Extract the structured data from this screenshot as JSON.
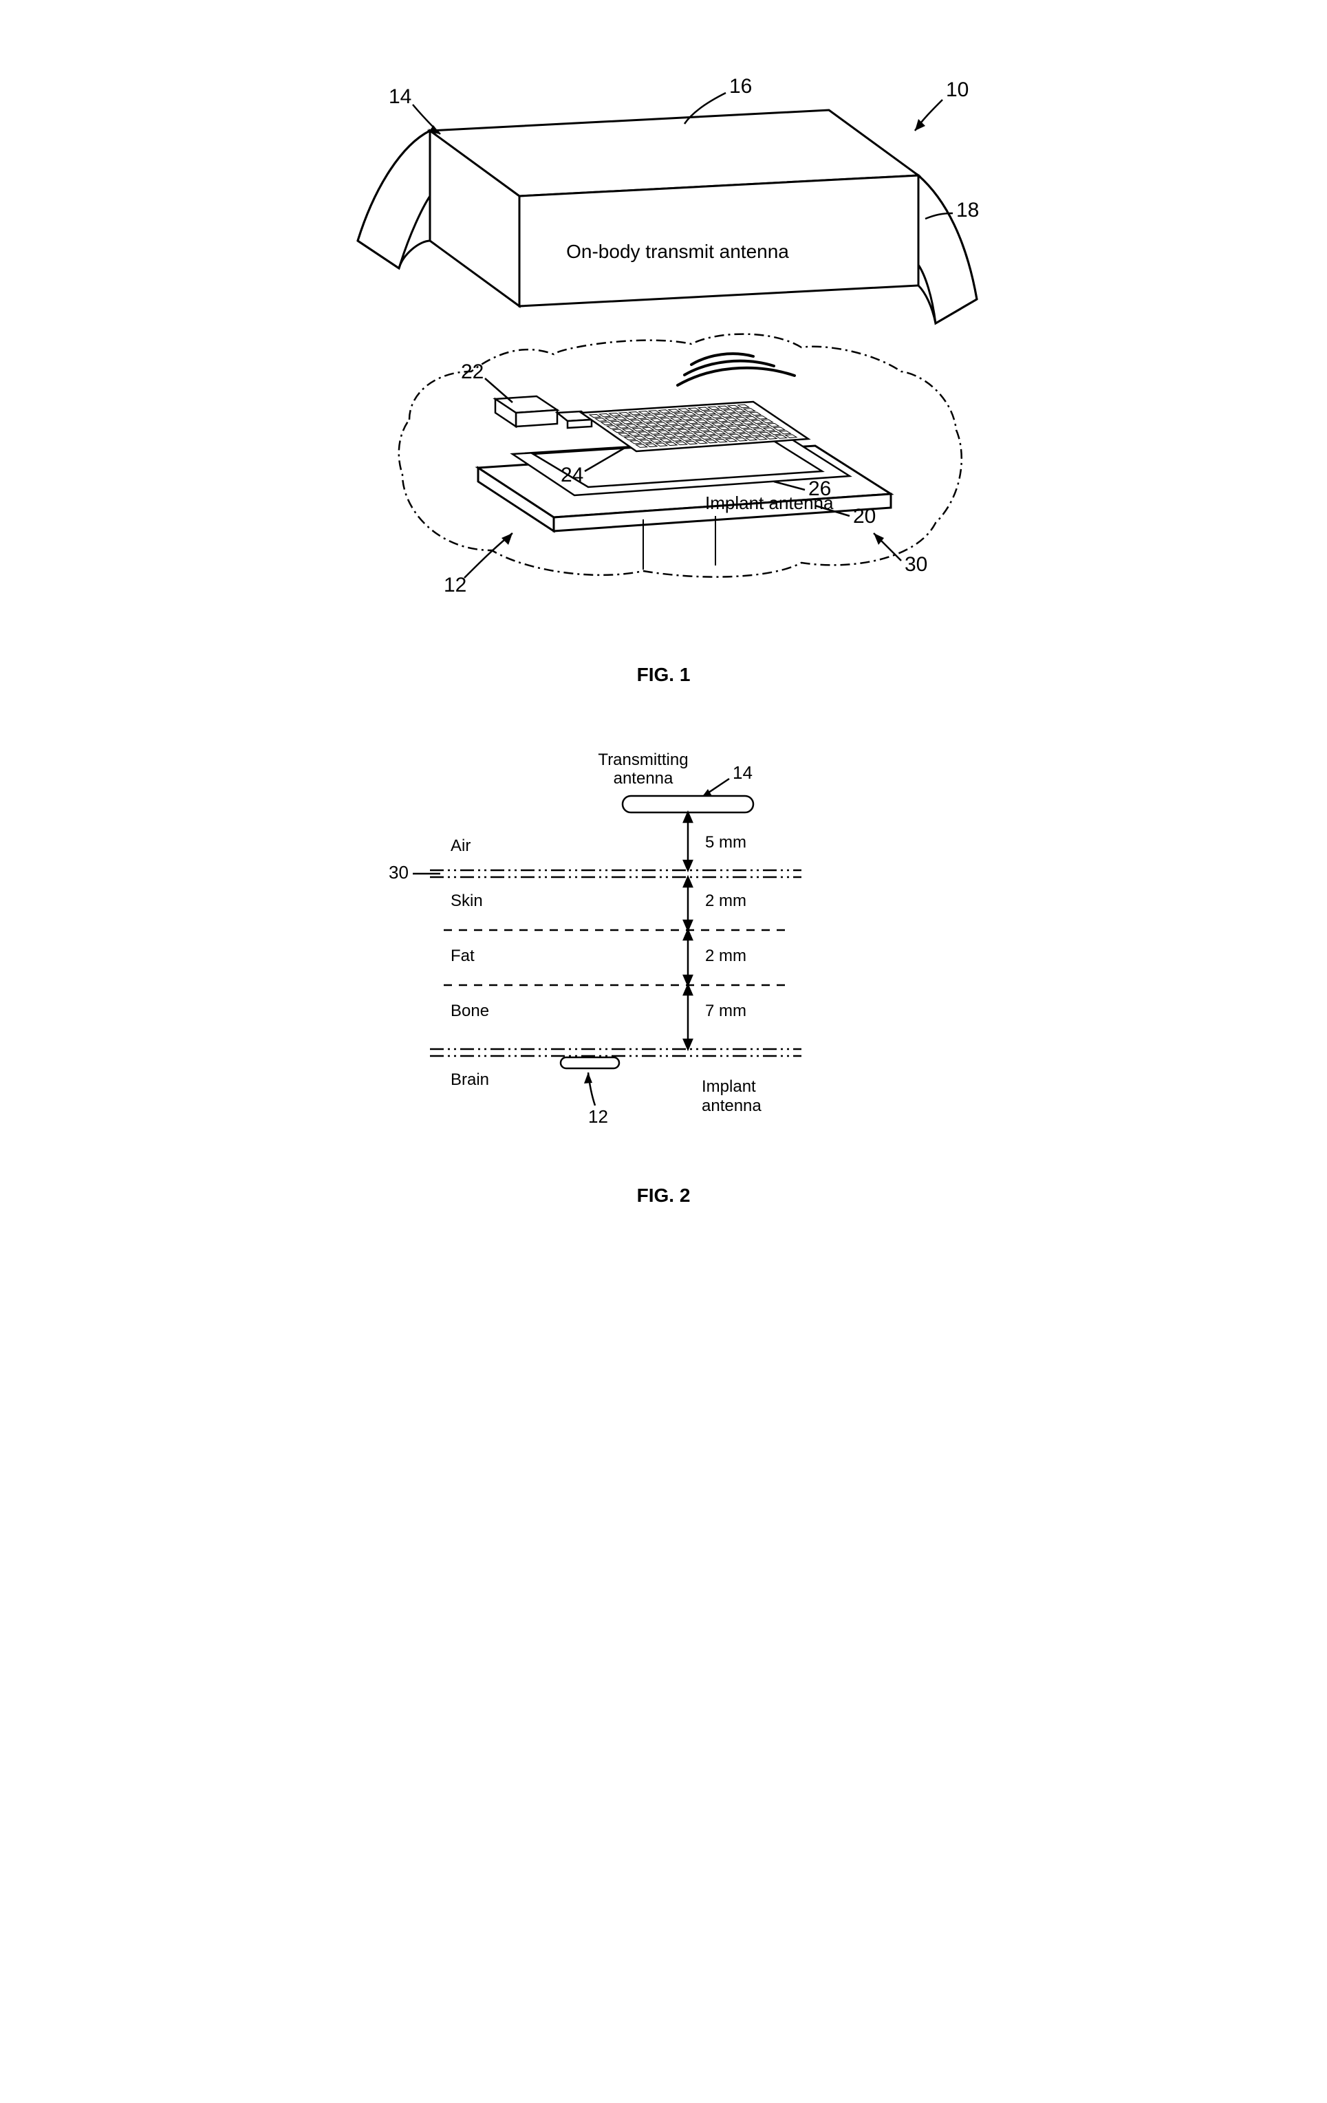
{
  "fig1": {
    "caption": "FIG. 1",
    "on_body_label": "On-body transmit antenna",
    "implant_label": "Implant antenna",
    "callouts": {
      "10": "10",
      "12": "12",
      "14": "14",
      "16": "16",
      "18": "18",
      "20": "20",
      "22": "22",
      "24": "24",
      "26": "26",
      "30": "30"
    },
    "stroke_color": "#000000",
    "stroke_width": 3,
    "font_size_label": 28,
    "font_size_callout": 30,
    "background": "#ffffff"
  },
  "fig2": {
    "caption": "FIG. 2",
    "tx_label": "Transmitting\nantenna",
    "implant_label": "Implant\nantenna",
    "layers": [
      {
        "name": "Air",
        "thickness": "5 mm"
      },
      {
        "name": "Skin",
        "thickness": "2 mm"
      },
      {
        "name": "Fat",
        "thickness": "2 mm"
      },
      {
        "name": "Bone",
        "thickness": "7 mm"
      },
      {
        "name": "Brain",
        "thickness": ""
      }
    ],
    "callouts": {
      "14": "14",
      "30": "30",
      "12": "12"
    },
    "stroke_color": "#000000",
    "stroke_width": 2.5,
    "font_size_label": 24,
    "font_size_callout": 26,
    "background": "#ffffff"
  }
}
